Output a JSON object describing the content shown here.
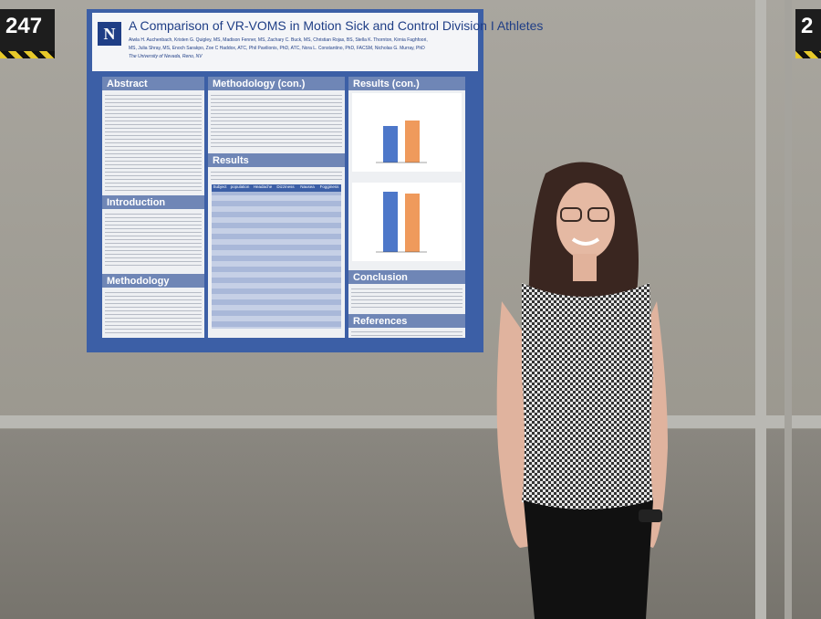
{
  "signs": {
    "left": "247",
    "right": "2"
  },
  "poster": {
    "title": "A Comparison of VR-VOMS in Motion Sick and Control Division I Athletes",
    "authors": [
      "Aiwla H. Auchenbach, Kristen G. Quigley, MS, Madison Fenner, MS, Zachary C. Buck, MS, Christian Rojas, BS, Stella K. Thornton, Kirnia Faghfoori,",
      "MS, Julia Shray, MS, Enoch Sarakpo, Zoe C Haddox, ATC, Phil Pavilionis, PhD, ATC, Nora L. Constantino, PhD, FACSM, Nicholas G. Murray, PhD"
    ],
    "affiliation": "The University of Nevada, Reno, NV",
    "sections": {
      "abstract": "Abstract",
      "introduction": "Introduction",
      "methodology": "Methodology",
      "methodology_cont": "Methodology (con.)",
      "results": "Results",
      "results_cont": "Results (con.)",
      "conclusion": "Conclusion",
      "references": "References"
    },
    "table_header": [
      "Subject",
      "population",
      "Headache",
      "Dizziness",
      "Nausea",
      "Fogginess"
    ]
  }
}
